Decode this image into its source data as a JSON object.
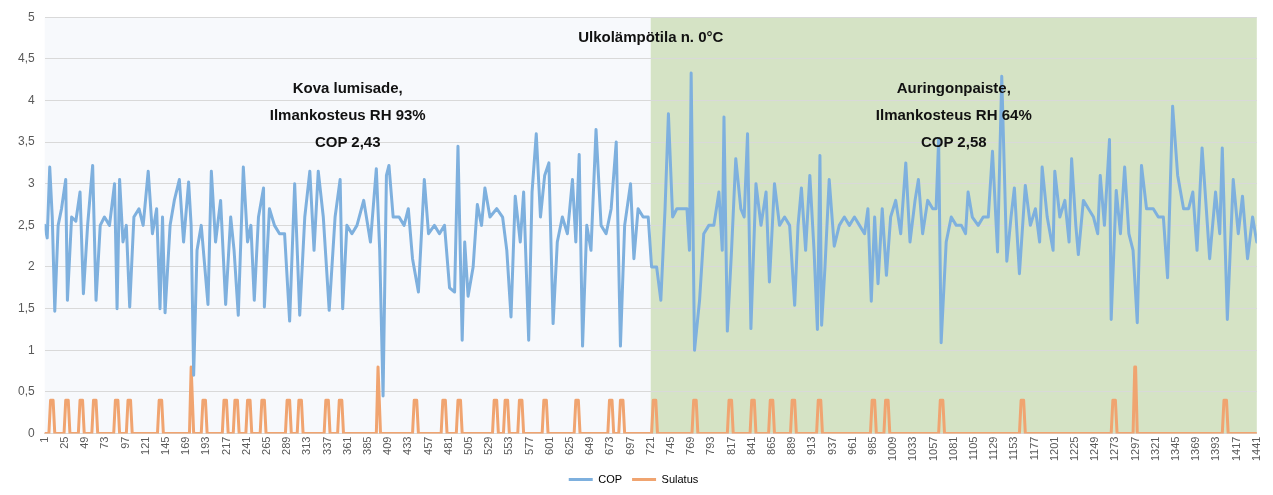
{
  "chart_data": {
    "type": "line",
    "title": "Ulkolämpötila n. 0°C",
    "xlim": [
      1,
      1441
    ],
    "xticks": [
      1,
      25,
      49,
      73,
      97,
      121,
      145,
      169,
      193,
      217,
      241,
      265,
      289,
      313,
      337,
      361,
      385,
      409,
      433,
      457,
      481,
      505,
      529,
      553,
      577,
      601,
      625,
      649,
      673,
      697,
      721,
      745,
      769,
      793,
      817,
      841,
      865,
      889,
      913,
      937,
      961,
      985,
      1009,
      1033,
      1057,
      1081,
      1105,
      1129,
      1153,
      1177,
      1201,
      1225,
      1249,
      1273,
      1297,
      1321,
      1345,
      1369,
      1393,
      1417,
      1441
    ],
    "ylim": [
      0,
      5
    ],
    "yticks": [
      0,
      {
        "value": 0.5,
        "label": "0,5"
      },
      1,
      {
        "value": 1.5,
        "label": "1,5"
      },
      2,
      {
        "value": 2.5,
        "label": "2,5"
      },
      3,
      {
        "value": 3.5,
        "label": "3,5"
      },
      4,
      {
        "value": 4.5,
        "label": "4,5"
      },
      5
    ],
    "grid": "y",
    "legend": "bottom",
    "line_style": "solid",
    "bands": [
      {
        "axis": "x",
        "from": 1,
        "to": 721,
        "color": "#f7f9fc",
        "label": "Kova lumisade,\nIlmankosteus RH 93%\nCOP 2,43"
      },
      {
        "axis": "x",
        "from": 721,
        "to": 1441,
        "color": "#d5e3c5",
        "label": "Auringonpaiste,\nIlmankosteus RH 64%\nCOP 2,58"
      }
    ],
    "series": [
      {
        "name": "COP",
        "color": "#7eb0de",
        "x": [
          1,
          4,
          7,
          10,
          13,
          17,
          21,
          26,
          28,
          33,
          38,
          43,
          47,
          52,
          58,
          62,
          67,
          72,
          78,
          84,
          87,
          90,
          94,
          98,
          102,
          107,
          113,
          118,
          124,
          129,
          134,
          138,
          141,
          144,
          150,
          155,
          161,
          166,
          172,
          175,
          178,
          182,
          187,
          195,
          199,
          204,
          210,
          216,
          222,
          226,
          231,
          237,
          242,
          246,
          250,
          255,
          261,
          262,
          268,
          274,
          280,
          286,
          292,
          298,
          304,
          310,
          316,
          321,
          326,
          332,
          339,
          346,
          352,
          355,
          360,
          366,
          372,
          380,
          388,
          395,
          399,
          403,
          407,
          410,
          415,
          422,
          428,
          433,
          438,
          445,
          452,
          457,
          464,
          470,
          476,
          482,
          488,
          492,
          497,
          500,
          504,
          510,
          515,
          520,
          524,
          530,
          538,
          545,
          550,
          555,
          560,
          566,
          570,
          576,
          580,
          585,
          590,
          595,
          600,
          605,
          610,
          616,
          622,
          628,
          632,
          636,
          640,
          645,
          650,
          656,
          662,
          668,
          674,
          680,
          685,
          690,
          697,
          701,
          706,
          712,
          718,
          722,
          728,
          733,
          738,
          742,
          747,
          752,
          758,
          764,
          767,
          769,
          773,
          779,
          784,
          790,
          796,
          802,
          806,
          808,
          812,
          817,
          822,
          828,
          832,
          836,
          840,
          846,
          852,
          858,
          862,
          868,
          874,
          880,
          886,
          892,
          896,
          900,
          905,
          910,
          915,
          919,
          922,
          924,
          928,
          933,
          939,
          945,
          951,
          957,
          963,
          969,
          975,
          979,
          983,
          987,
          991,
          996,
          1001,
          1006,
          1012,
          1018,
          1024,
          1029,
          1035,
          1039,
          1044,
          1050,
          1056,
          1060,
          1063,
          1066,
          1072,
          1078,
          1084,
          1090,
          1095,
          1098,
          1103,
          1110,
          1116,
          1122,
          1127,
          1133,
          1138,
          1144,
          1149,
          1153,
          1159,
          1166,
          1172,
          1178,
          1183,
          1186,
          1192,
          1199,
          1201,
          1207,
          1213,
          1218,
          1221,
          1226,
          1229,
          1235,
          1241,
          1247,
          1252,
          1255,
          1260,
          1266,
          1268,
          1274,
          1279,
          1284,
          1289,
          1294,
          1299,
          1304,
          1310,
          1318,
          1324,
          1330,
          1335,
          1341,
          1347,
          1354,
          1360,
          1365,
          1370,
          1376,
          1381,
          1385,
          1392,
          1397,
          1400,
          1406,
          1413,
          1419,
          1424,
          1430,
          1436,
          1441
        ],
        "values": [
          2.5,
          2.35,
          3.2,
          2.6,
          1.47,
          2.5,
          2.7,
          3.05,
          1.6,
          2.6,
          2.55,
          2.9,
          1.68,
          2.5,
          3.22,
          1.6,
          2.5,
          2.6,
          2.5,
          3.0,
          1.5,
          3.05,
          2.3,
          2.5,
          1.52,
          2.6,
          2.7,
          2.5,
          3.15,
          2.4,
          2.7,
          1.5,
          2.6,
          1.45,
          2.5,
          2.8,
          3.05,
          2.3,
          3.02,
          2.5,
          0.7,
          2.2,
          2.5,
          1.55,
          3.15,
          2.3,
          2.8,
          1.55,
          2.6,
          2.2,
          1.42,
          3.2,
          2.3,
          2.5,
          1.6,
          2.6,
          2.95,
          1.52,
          2.7,
          2.5,
          2.4,
          2.4,
          1.35,
          3.0,
          1.42,
          2.6,
          3.15,
          2.2,
          3.15,
          2.6,
          1.48,
          2.6,
          3.05,
          1.5,
          2.5,
          2.4,
          2.5,
          2.8,
          2.3,
          3.18,
          2.2,
          0.45,
          3.1,
          3.22,
          2.6,
          2.6,
          2.5,
          2.7,
          2.1,
          1.7,
          3.05,
          2.4,
          2.5,
          2.4,
          2.5,
          1.75,
          1.7,
          3.45,
          1.12,
          2.3,
          1.65,
          2.0,
          2.75,
          2.5,
          2.95,
          2.6,
          2.7,
          2.6,
          2.2,
          1.4,
          2.85,
          2.3,
          2.9,
          1.12,
          2.9,
          3.6,
          2.6,
          3.1,
          3.25,
          1.32,
          2.3,
          2.6,
          2.4,
          3.05,
          2.3,
          3.35,
          1.05,
          2.5,
          2.2,
          3.65,
          2.5,
          2.4,
          2.7,
          3.5,
          1.05,
          2.5,
          3.0,
          2.1,
          2.7,
          2.6,
          2.6,
          2.0,
          2.0,
          1.6,
          2.7,
          3.84,
          2.6,
          2.7,
          2.7,
          2.7,
          2.2,
          4.33,
          1.0,
          1.6,
          2.4,
          2.5,
          2.5,
          2.9,
          2.2,
          3.8,
          1.23,
          2.2,
          3.3,
          2.7,
          2.6,
          3.6,
          1.26,
          3.0,
          2.5,
          2.9,
          1.82,
          3.0,
          2.5,
          2.6,
          2.5,
          1.54,
          2.5,
          2.95,
          2.2,
          3.1,
          2.2,
          1.25,
          3.34,
          1.3,
          2.0,
          3.05,
          2.25,
          2.5,
          2.6,
          2.5,
          2.6,
          2.5,
          2.4,
          2.7,
          1.59,
          2.6,
          1.8,
          2.7,
          1.9,
          2.6,
          2.8,
          2.4,
          3.25,
          2.3,
          2.8,
          3.05,
          2.4,
          2.8,
          2.7,
          2.7,
          3.53,
          1.09,
          2.3,
          2.6,
          2.5,
          2.5,
          2.4,
          2.9,
          2.6,
          2.5,
          2.6,
          2.6,
          3.39,
          2.18,
          4.29,
          2.07,
          2.6,
          2.95,
          1.92,
          2.98,
          2.5,
          2.7,
          2.3,
          3.2,
          2.6,
          2.2,
          3.15,
          2.6,
          2.8,
          2.3,
          3.3,
          2.5,
          2.15,
          2.8,
          2.7,
          2.6,
          2.4,
          3.1,
          2.5,
          3.53,
          1.37,
          2.92,
          2.4,
          3.2,
          2.4,
          2.2,
          1.33,
          3.22,
          2.7,
          2.7,
          2.6,
          2.6,
          1.87,
          3.93,
          3.1,
          2.7,
          2.7,
          2.9,
          2.2,
          3.43,
          2.7,
          2.1,
          2.9,
          2.4,
          3.43,
          1.37,
          3.05,
          2.4,
          2.85,
          2.1,
          2.6,
          2.3
        ]
      },
      {
        "name": "Sulatus",
        "color": "#f0a470",
        "x": [
          1,
          6,
          8,
          11,
          13,
          24,
          26,
          29,
          31,
          41,
          43,
          46,
          48,
          57,
          59,
          62,
          64,
          83,
          85,
          88,
          90,
          98,
          100,
          103,
          105,
          135,
          137,
          140,
          142,
          173,
          175,
          176,
          178,
          187,
          189,
          192,
          194,
          212,
          214,
          217,
          219,
          225,
          227,
          230,
          232,
          240,
          242,
          245,
          247,
          257,
          259,
          262,
          264,
          287,
          289,
          292,
          294,
          301,
          303,
          306,
          308,
          333,
          335,
          338,
          340,
          349,
          351,
          354,
          356,
          395,
          397,
          398,
          400,
          438,
          440,
          443,
          445,
          472,
          474,
          477,
          479,
          490,
          492,
          495,
          497,
          533,
          535,
          538,
          540,
          546,
          548,
          551,
          553,
          563,
          565,
          568,
          570,
          592,
          594,
          597,
          599,
          630,
          632,
          635,
          637,
          670,
          672,
          675,
          677,
          683,
          685,
          688,
          690,
          722,
          724,
          727,
          729,
          770,
          772,
          775,
          777,
          812,
          814,
          817,
          819,
          839,
          841,
          844,
          846,
          861,
          863,
          866,
          868,
          887,
          889,
          892,
          894,
          918,
          920,
          923,
          925,
          982,
          984,
          987,
          989,
          998,
          1000,
          1003,
          1005,
          1063,
          1065,
          1068,
          1070,
          1159,
          1161,
          1164,
          1166,
          1268,
          1270,
          1273,
          1275,
          1294,
          1296,
          1297,
          1299,
          1400,
          1402,
          1405,
          1407,
          1441
        ],
        "values": [
          0,
          0,
          0.4,
          0.4,
          0,
          0,
          0.4,
          0.4,
          0,
          0,
          0.4,
          0.4,
          0,
          0,
          0.4,
          0.4,
          0,
          0,
          0.4,
          0.4,
          0,
          0,
          0.4,
          0.4,
          0,
          0,
          0.4,
          0.4,
          0,
          0,
          0.8,
          0.8,
          0,
          0,
          0.4,
          0.4,
          0,
          0,
          0.4,
          0.4,
          0,
          0,
          0.4,
          0.4,
          0,
          0,
          0.4,
          0.4,
          0,
          0,
          0.4,
          0.4,
          0,
          0,
          0.4,
          0.4,
          0,
          0,
          0.4,
          0.4,
          0,
          0,
          0.4,
          0.4,
          0,
          0,
          0.4,
          0.4,
          0,
          0,
          0.8,
          0.8,
          0,
          0,
          0.4,
          0.4,
          0,
          0,
          0.4,
          0.4,
          0,
          0,
          0.4,
          0.4,
          0,
          0,
          0.4,
          0.4,
          0,
          0,
          0.4,
          0.4,
          0,
          0,
          0.4,
          0.4,
          0,
          0,
          0.4,
          0.4,
          0,
          0,
          0.4,
          0.4,
          0,
          0,
          0.4,
          0.4,
          0,
          0,
          0.4,
          0.4,
          0,
          0,
          0.4,
          0.4,
          0,
          0,
          0.4,
          0.4,
          0,
          0,
          0.4,
          0.4,
          0,
          0,
          0.4,
          0.4,
          0,
          0,
          0.4,
          0.4,
          0,
          0,
          0.4,
          0.4,
          0,
          0,
          0.4,
          0.4,
          0,
          0,
          0.4,
          0.4,
          0,
          0,
          0.4,
          0.4,
          0,
          0,
          0.4,
          0.4,
          0,
          0,
          0.4,
          0.4,
          0,
          0,
          0.4,
          0.4,
          0,
          0,
          0.8,
          0.8,
          0,
          0,
          0.4,
          0.4,
          0,
          0
        ]
      }
    ]
  }
}
